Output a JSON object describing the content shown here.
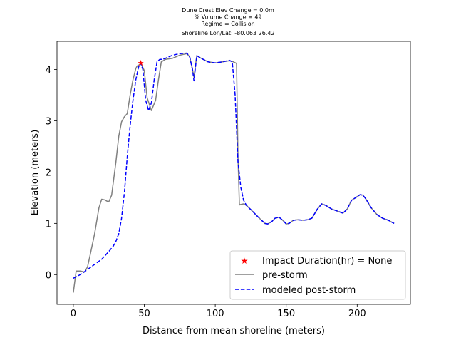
{
  "chart_data": {
    "type": "line",
    "title_lines": [
      "Dune Crest Elev Change = 0.0m",
      "% Volume Change = 49",
      "Regime = Collision",
      "Shoreline Lon/Lat: -80.063 26.42"
    ],
    "xlabel": "Distance from mean shoreline (meters)",
    "ylabel": "Elevation (meters)",
    "xlim": [
      -11.5,
      237.5
    ],
    "ylim": [
      -0.58,
      4.55
    ],
    "xticks": [
      0,
      50,
      100,
      150,
      200
    ],
    "yticks": [
      0,
      1,
      2,
      3,
      4
    ],
    "grid": false,
    "legend_position": "lower right",
    "colors": {
      "pre_storm": "#808080",
      "post_storm": "#0000ff",
      "marker": "#ff0000"
    },
    "marker": {
      "label": "Impact Duration(hr) = None",
      "x": 47.5,
      "y": 4.13
    },
    "series": [
      {
        "name": "pre-storm",
        "style": "solid",
        "x": [
          0,
          2,
          5,
          8,
          10,
          12,
          15,
          18,
          20,
          22,
          24,
          25,
          27,
          30,
          32,
          34,
          36,
          38,
          40,
          42,
          44,
          45,
          47,
          48,
          50,
          52,
          55,
          58,
          60,
          62,
          65,
          70,
          75,
          80,
          82,
          84,
          85,
          87,
          90,
          95,
          100,
          105,
          110,
          112,
          115,
          116,
          117,
          118,
          120,
          122,
          125,
          130,
          135,
          137,
          140,
          142,
          145,
          148,
          150,
          152,
          155,
          158,
          162,
          165,
          168,
          172,
          175,
          178,
          182,
          186,
          190,
          193,
          196,
          200,
          202,
          204,
          206,
          210,
          214,
          218,
          222,
          226
        ],
        "y": [
          -0.35,
          0.07,
          0.07,
          0.05,
          0.15,
          0.4,
          0.8,
          1.3,
          1.47,
          1.46,
          1.43,
          1.42,
          1.55,
          2.2,
          2.7,
          2.98,
          3.08,
          3.14,
          3.5,
          3.8,
          4.02,
          4.07,
          4.1,
          4.1,
          3.98,
          3.45,
          3.2,
          3.4,
          3.8,
          4.15,
          4.2,
          4.22,
          4.28,
          4.31,
          4.25,
          4.0,
          3.85,
          4.27,
          4.22,
          4.15,
          4.13,
          4.15,
          4.17,
          4.16,
          4.12,
          2.3,
          1.36,
          1.37,
          1.38,
          1.35,
          1.27,
          1.13,
          1.0,
          0.99,
          1.04,
          1.1,
          1.12,
          1.05,
          0.99,
          1.0,
          1.06,
          1.07,
          1.06,
          1.07,
          1.1,
          1.28,
          1.38,
          1.35,
          1.28,
          1.24,
          1.2,
          1.28,
          1.45,
          1.52,
          1.56,
          1.55,
          1.48,
          1.3,
          1.17,
          1.1,
          1.06,
          1.0
        ]
      },
      {
        "name": "modeled post-storm",
        "style": "dashed",
        "x": [
          0,
          3,
          6,
          10,
          15,
          20,
          25,
          28,
          30,
          32,
          34,
          36,
          38,
          40,
          42,
          44,
          46,
          47.5,
          49,
          51,
          53,
          55,
          57,
          59,
          61,
          63,
          65,
          70,
          75,
          80,
          82,
          84,
          85,
          87,
          90,
          95,
          100,
          105,
          110,
          112,
          114,
          116,
          118,
          120,
          122,
          125,
          130,
          135,
          137,
          140,
          142,
          145,
          148,
          150,
          152,
          155,
          158,
          162,
          165,
          168,
          172,
          175,
          178,
          182,
          186,
          190,
          193,
          196,
          200,
          202,
          204,
          206,
          210,
          214,
          218,
          222,
          226
        ],
        "y": [
          -0.07,
          -0.03,
          0.02,
          0.1,
          0.2,
          0.3,
          0.45,
          0.55,
          0.65,
          0.8,
          1.1,
          1.6,
          2.3,
          2.9,
          3.4,
          3.8,
          4.05,
          4.13,
          4.0,
          3.4,
          3.2,
          3.35,
          3.8,
          4.15,
          4.2,
          4.2,
          4.22,
          4.28,
          4.31,
          4.32,
          4.25,
          4.0,
          3.78,
          4.27,
          4.22,
          4.15,
          4.13,
          4.15,
          4.18,
          4.15,
          3.5,
          2.2,
          1.7,
          1.45,
          1.35,
          1.27,
          1.13,
          1.0,
          0.99,
          1.04,
          1.1,
          1.12,
          1.05,
          0.99,
          1.0,
          1.06,
          1.07,
          1.06,
          1.07,
          1.1,
          1.28,
          1.38,
          1.35,
          1.28,
          1.24,
          1.2,
          1.28,
          1.45,
          1.52,
          1.56,
          1.55,
          1.48,
          1.3,
          1.17,
          1.1,
          1.06,
          1.0
        ]
      }
    ]
  }
}
